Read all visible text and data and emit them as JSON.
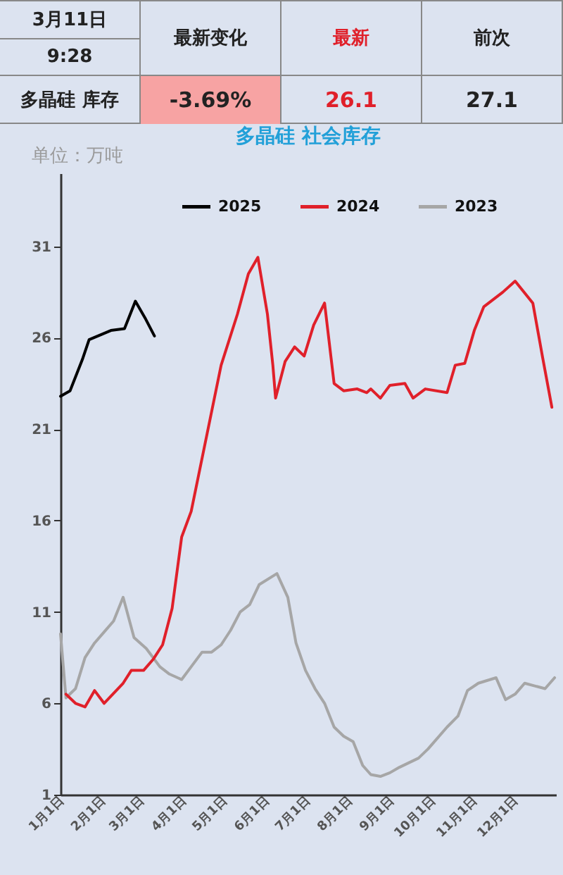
{
  "chart_data": [
    {
      "type": "other",
      "annotations": [
        "3月11日",
        "9:28",
        "最新变化",
        "最新",
        "前次",
        "多晶硅 库存",
        "-3.69%",
        "26.1",
        "27.1"
      ]
    },
    {
      "type": "line",
      "title": "多晶硅 社会库存",
      "ylabel": "单位：万吨",
      "legend": "top",
      "grid": false,
      "xlim": [
        "--01-01",
        "--12-31"
      ],
      "xticks": [
        {
          "value": "--01-01",
          "label": "1月1日"
        },
        {
          "value": "--02-01",
          "label": "2月1日"
        },
        {
          "value": "--03-01",
          "label": "3月1日"
        },
        {
          "value": "--04-01",
          "label": "4月1日"
        },
        {
          "value": "--05-01",
          "label": "5月1日"
        },
        {
          "value": "--06-01",
          "label": "6月1日"
        },
        {
          "value": "--07-01",
          "label": "7月1日"
        },
        {
          "value": "--08-01",
          "label": "8月1日"
        },
        {
          "value": "--09-01",
          "label": "9月1日"
        },
        {
          "value": "--10-01",
          "label": "10月1日"
        },
        {
          "value": "--11-01",
          "label": "11月1日"
        },
        {
          "value": "--12-01",
          "label": "12月1日"
        }
      ],
      "ylim": [
        1,
        35
      ],
      "yticks": [
        1,
        6,
        11,
        16,
        21,
        26,
        31
      ],
      "series": [
        {
          "name": "2025",
          "color": "#000000",
          "x": [
            "--01-01",
            "--01-08",
            "--01-17",
            "--01-22",
            "--02-07",
            "--02-17",
            "--02-25",
            "--03-04",
            "--03-11"
          ],
          "values": [
            22.8,
            23.1,
            24.8,
            25.9,
            26.4,
            26.5,
            28.0,
            27.1,
            26.1
          ]
        },
        {
          "name": "2024",
          "color": "#e0202a",
          "x": [
            "--01-05",
            "--01-12",
            "--01-19",
            "--01-26",
            "--02-02",
            "--02-16",
            "--02-22",
            "--03-03",
            "--03-10",
            "--03-17",
            "--03-24",
            "--03-31",
            "--04-07",
            "--04-29",
            "--05-11",
            "--05-19",
            "--05-26",
            "--06-02",
            "--06-06",
            "--06-08",
            "--06-15",
            "--06-22",
            "--06-29",
            "--07-06",
            "--07-14",
            "--07-21",
            "--07-28",
            "--08-07",
            "--08-14",
            "--08-17",
            "--08-24",
            "--08-31",
            "--09-11",
            "--09-17",
            "--09-26",
            "--10-12",
            "--10-18",
            "--10-25",
            "--11-01",
            "--11-08",
            "--11-22",
            "--12-01",
            "--12-14",
            "--12-21",
            "--12-28"
          ],
          "values": [
            6.5,
            6.0,
            5.8,
            6.7,
            6.0,
            7.1,
            7.8,
            7.8,
            8.4,
            9.2,
            11.2,
            15.1,
            16.5,
            24.5,
            27.3,
            29.5,
            30.4,
            27.3,
            24.5,
            22.7,
            24.7,
            25.5,
            25.0,
            26.7,
            27.9,
            23.5,
            23.1,
            23.2,
            23.0,
            23.2,
            22.7,
            23.4,
            23.5,
            22.7,
            23.2,
            23.0,
            24.5,
            24.6,
            26.4,
            27.7,
            28.5,
            29.1,
            27.9,
            25.0,
            22.2
          ]
        },
        {
          "name": "2023",
          "color": "#a6a6a6",
          "x": [
            "--01-01",
            "--01-05",
            "--01-12",
            "--01-19",
            "--01-26",
            "--02-02",
            "--02-09",
            "--02-16",
            "--02-24",
            "--03-05",
            "--03-15",
            "--03-22",
            "--03-31",
            "--04-07",
            "--04-15",
            "--04-22",
            "--04-29",
            "--05-06",
            "--05-13",
            "--05-20",
            "--05-27",
            "--06-09",
            "--06-17",
            "--06-23",
            "--06-30",
            "--07-07",
            "--07-14",
            "--07-21",
            "--07-28",
            "--08-04",
            "--08-11",
            "--08-17",
            "--08-24",
            "--08-31",
            "--09-07",
            "--09-21",
            "--09-28",
            "--10-12",
            "--10-20",
            "--10-27",
            "--11-04",
            "--11-17",
            "--11-24",
            "--12-01",
            "--12-08",
            "--12-23",
            "--12-30"
          ],
          "values": [
            9.8,
            6.3,
            6.8,
            8.5,
            9.3,
            9.9,
            10.5,
            11.8,
            9.6,
            9.0,
            8.0,
            7.6,
            7.3,
            8.0,
            8.8,
            8.8,
            9.2,
            10.0,
            11.0,
            11.4,
            12.5,
            13.1,
            11.8,
            9.3,
            7.8,
            6.8,
            6.0,
            4.7,
            4.2,
            3.9,
            2.6,
            2.1,
            2.0,
            2.2,
            2.5,
            3.0,
            3.5,
            4.7,
            5.3,
            6.7,
            7.1,
            7.4,
            6.2,
            6.5,
            7.1,
            6.8,
            7.4
          ]
        }
      ]
    }
  ]
}
